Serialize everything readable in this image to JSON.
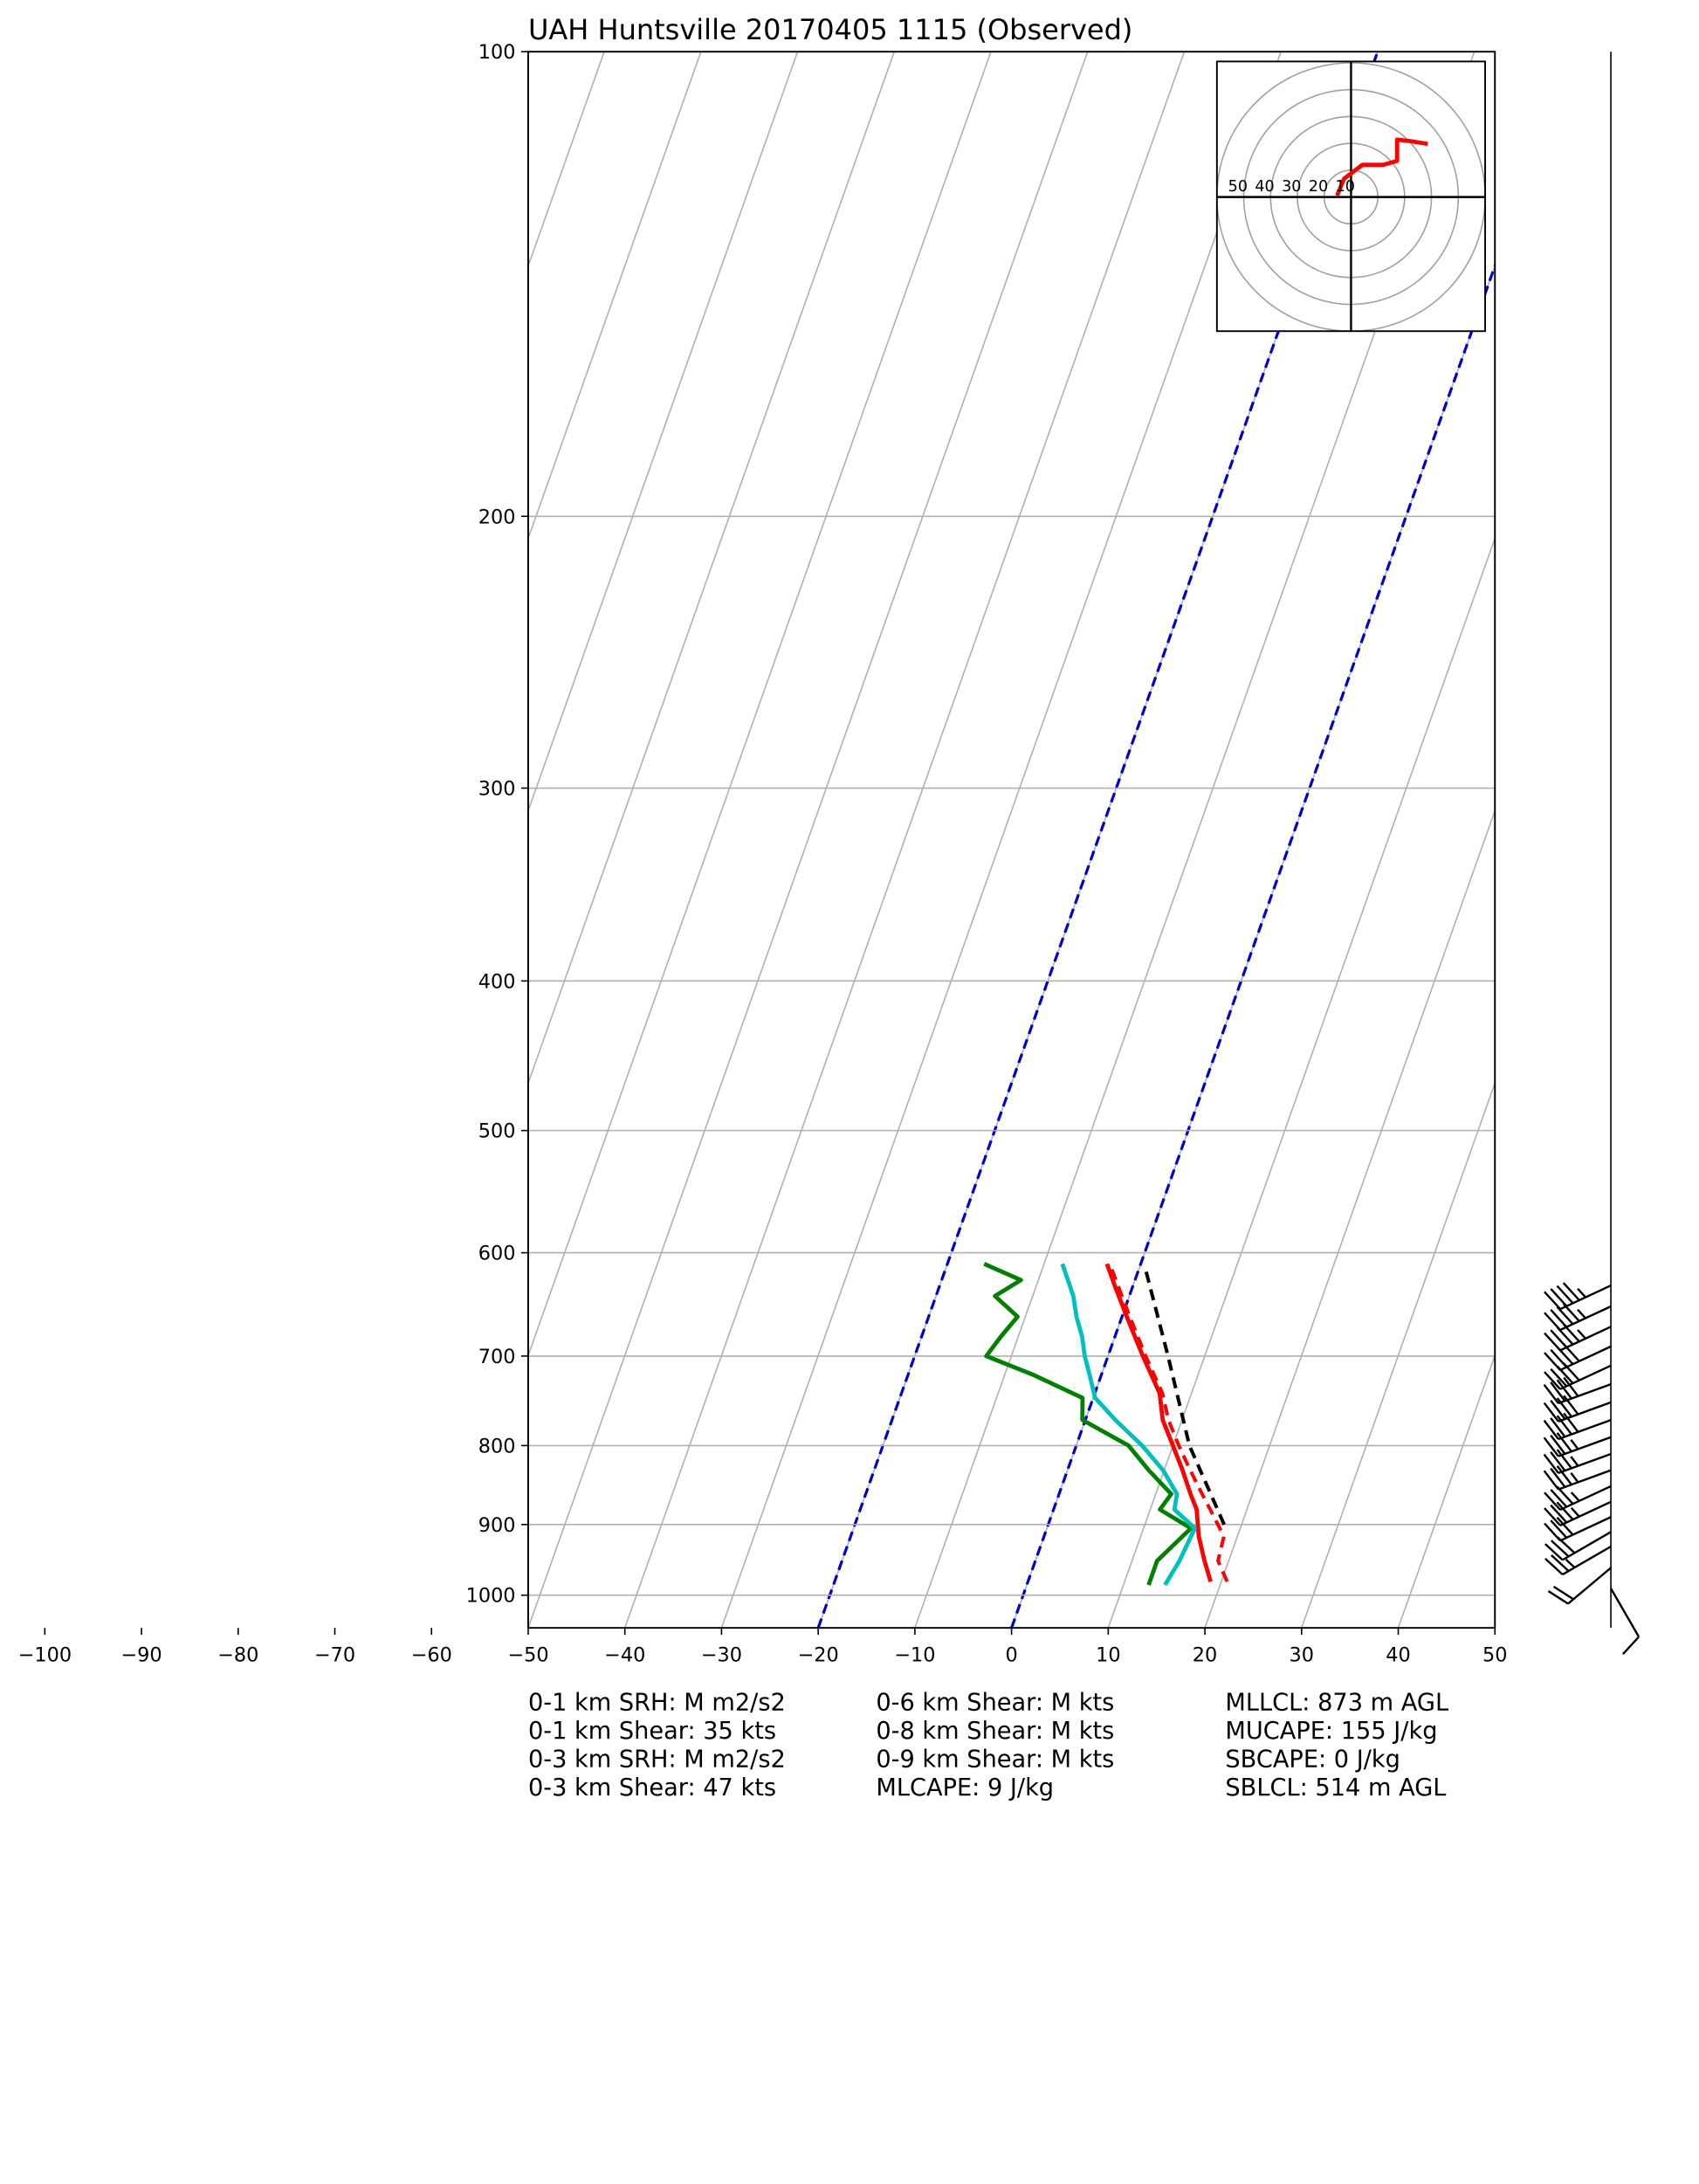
{
  "chart_data": {
    "type": "skewt",
    "title": "UAH Huntsville 20170405 1115   (Observed)",
    "xlim": [
      -50,
      50
    ],
    "ylim": [
      1050,
      100
    ],
    "log_y": true,
    "skew": 0.355,
    "grid": true,
    "xticks": [
      {
        "value": -100,
        "label": "−100"
      },
      {
        "value": -90,
        "label": "−90"
      },
      {
        "value": -80,
        "label": "−80"
      },
      {
        "value": -70,
        "label": "−70"
      },
      {
        "value": -60,
        "label": "−60"
      },
      {
        "value": -50,
        "label": "−50"
      },
      {
        "value": -40,
        "label": "−40"
      },
      {
        "value": -30,
        "label": "−30"
      },
      {
        "value": -20,
        "label": "−20"
      },
      {
        "value": -10,
        "label": "−10"
      },
      0,
      10,
      20,
      30,
      40,
      50
    ],
    "yticks": [
      100,
      200,
      300,
      400,
      500,
      600,
      700,
      800,
      900,
      1000
    ],
    "highlight_isotherms": [
      -20,
      0
    ],
    "highlight_color": "#0000cc",
    "series": [
      {
        "color": "#ff0000",
        "dashed": false,
        "pressures": [
          980,
          950,
          916,
          880,
          860,
          830,
          800,
          770,
          740,
          700,
          660,
          630,
          610
        ],
        "values": [
          18.9,
          17.5,
          16.0,
          14.8,
          13.6,
          11.9,
          10.0,
          8.0,
          6.7,
          3.6,
          0.5,
          -1.9,
          -3.5
        ]
      },
      {
        "color": "#008000",
        "dashed": false,
        "pressures": [
          985,
          950,
          905,
          880,
          860,
          830,
          800,
          770,
          745,
          720,
          700,
          680,
          660,
          640,
          625,
          610
        ],
        "values": [
          12.6,
          12.6,
          14.9,
          11.0,
          11.6,
          8.4,
          5.4,
          -0.3,
          -1.1,
          -7.0,
          -12.6,
          -11.8,
          -10.8,
          -13.9,
          -11.8,
          -16.2
        ]
      },
      {
        "color": "#00bfbf",
        "dashed": false,
        "pressures": [
          985,
          950,
          905,
          880,
          860,
          830,
          800,
          770,
          745,
          720,
          700,
          680,
          660,
          640,
          610
        ],
        "values": [
          14.3,
          14.9,
          15.3,
          12.5,
          12.2,
          9.9,
          6.8,
          3.1,
          0.2,
          -1.2,
          -2.4,
          -3.4,
          -4.7,
          -5.8,
          -8.1
        ]
      },
      {
        "color": "#ff0000",
        "dashed": true,
        "pressures": [
          980,
          950,
          916,
          880,
          860,
          830,
          800,
          770,
          740,
          700,
          660,
          610
        ],
        "values": [
          20.6,
          18.9,
          18.6,
          16.2,
          14.8,
          12.7,
          10.6,
          8.6,
          7.0,
          3.9,
          0.8,
          -3.2
        ]
      },
      {
        "color": "#000000",
        "dashed": true,
        "pressures": [
          900,
          800,
          700,
          615
        ],
        "values": [
          18.2,
          11.7,
          6.2,
          0.7
        ]
      }
    ],
    "wind_barbs": {
      "pressures": [
        630,
        650,
        670,
        690,
        710,
        730,
        750,
        770,
        790,
        810,
        830,
        850,
        870,
        890,
        910,
        930,
        960,
        990
      ],
      "speeds": [
        45,
        45,
        45,
        40,
        40,
        40,
        40,
        40,
        35,
        35,
        35,
        35,
        35,
        30,
        30,
        25,
        20,
        10
      ],
      "directions": [
        245,
        245,
        245,
        245,
        245,
        250,
        250,
        250,
        250,
        250,
        250,
        245,
        245,
        245,
        240,
        240,
        230,
        150
      ]
    },
    "hodograph": {
      "color": "#ff0000",
      "rings": [
        10,
        20,
        30,
        40,
        50
      ],
      "u": [
        -5.2,
        -2.6,
        4.2,
        12.0,
        17.2,
        17.2,
        22.4,
        28.6
      ],
      "v": [
        0.5,
        6.8,
        12.0,
        12.0,
        13.5,
        21.4,
        20.8,
        19.8
      ]
    },
    "stats": [
      [
        "0-1 km SRH: M m2/s2",
        "0-1 km Shear: 35 kts",
        "0-3 km SRH: M m2/s2",
        "0-3 km Shear: 47 kts"
      ],
      [
        "0-6 km Shear: M kts",
        "0-8 km Shear: M kts",
        "0-9 km Shear: M kts",
        "MLCAPE: 9 J/kg"
      ],
      [
        "MLLCL: 873 m AGL",
        "MUCAPE: 155 J/kg",
        "SBCAPE: 0 J/kg",
        "SBLCL: 514 m AGL"
      ]
    ]
  }
}
